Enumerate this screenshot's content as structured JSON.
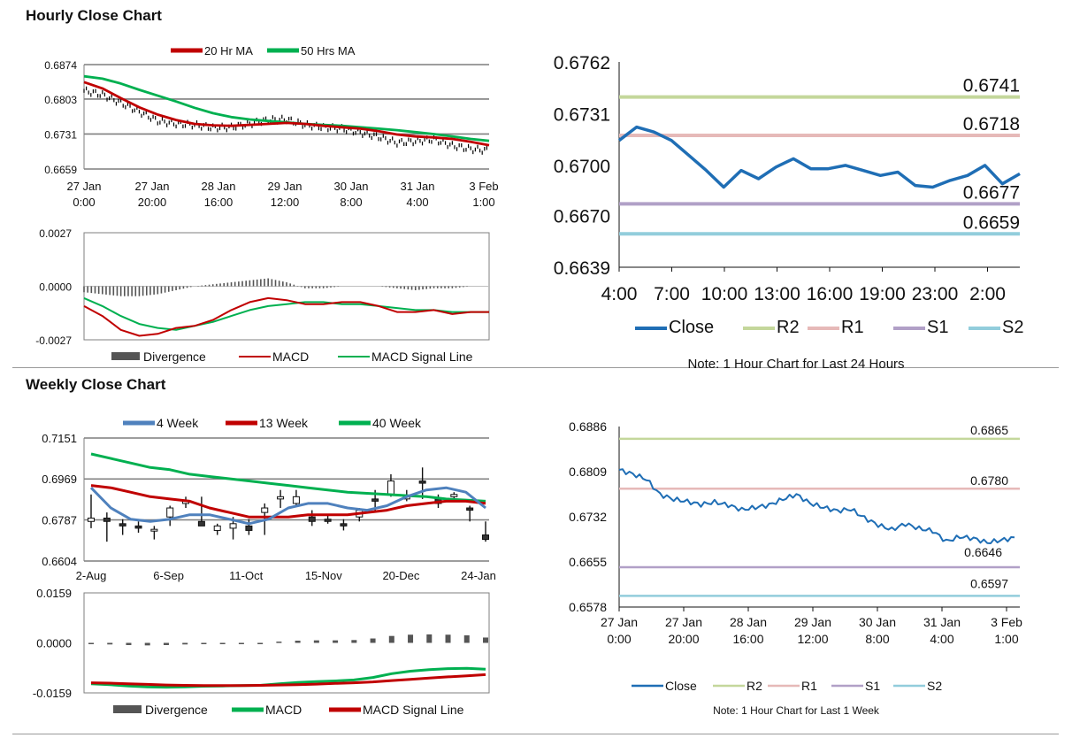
{
  "sections": {
    "hourly_title": "Hourly Close Chart",
    "weekly_title": "Weekly Close Chart"
  },
  "chart_data": [
    {
      "id": "hourly-ma",
      "type": "line",
      "title": "",
      "legend": [
        "20 Hr MA",
        "50 Hrs MA"
      ],
      "colors": {
        "ma20": "#c00000",
        "ma50": "#00b050",
        "price": "#000000"
      },
      "yticks": [
        "0.6874",
        "0.6803",
        "0.6731",
        "0.6659"
      ],
      "ylim": [
        0.6659,
        0.6874
      ],
      "xticks": [
        [
          "27 Jan",
          "0:00"
        ],
        [
          "27 Jan",
          "20:00"
        ],
        [
          "28 Jan",
          "16:00"
        ],
        [
          "29 Jan",
          "12:00"
        ],
        [
          "30 Jan",
          "8:00"
        ],
        [
          "31 Jan",
          "4:00"
        ],
        [
          "3 Feb",
          "1:00"
        ]
      ],
      "series": [
        {
          "name": "20 Hr MA",
          "values": [
            0.6838,
            0.6825,
            0.6805,
            0.6786,
            0.6771,
            0.676,
            0.6752,
            0.6749,
            0.6748,
            0.675,
            0.6752,
            0.6754,
            0.6752,
            0.6748,
            0.6745,
            0.6742,
            0.6737,
            0.673,
            0.6726,
            0.6724,
            0.6721,
            0.6715,
            0.6708
          ]
        },
        {
          "name": "50 Hrs MA",
          "values": [
            0.685,
            0.6845,
            0.6835,
            0.6822,
            0.681,
            0.6798,
            0.6785,
            0.6774,
            0.6766,
            0.6761,
            0.6758,
            0.6755,
            0.6752,
            0.675,
            0.6748,
            0.6745,
            0.6742,
            0.6739,
            0.6735,
            0.6731,
            0.6726,
            0.6721,
            0.6717
          ]
        },
        {
          "name": "Price",
          "values": [
            0.682,
            0.6812,
            0.6795,
            0.6777,
            0.6758,
            0.6752,
            0.675,
            0.6744,
            0.6745,
            0.6752,
            0.676,
            0.6761,
            0.675,
            0.6745,
            0.6742,
            0.6734,
            0.6725,
            0.6713,
            0.6716,
            0.672,
            0.6707,
            0.67,
            0.6697
          ]
        }
      ]
    },
    {
      "id": "hourly-macd",
      "type": "line",
      "legend": [
        "Divergence",
        "MACD",
        "MACD Signal Line"
      ],
      "colors": {
        "divergence": "#555555",
        "macd": "#c00000",
        "signal": "#00b050"
      },
      "yticks": [
        "0.0027",
        "0.0000",
        "-0.0027"
      ],
      "ylim": [
        -0.0027,
        0.0027
      ],
      "series": [
        {
          "name": "MACD",
          "values": [
            -0.001,
            -0.0015,
            -0.0022,
            -0.0025,
            -0.0024,
            -0.0021,
            -0.002,
            -0.0017,
            -0.0012,
            -0.0008,
            -0.0006,
            -0.0007,
            -0.0009,
            -0.0009,
            -0.0008,
            -0.0008,
            -0.001,
            -0.0013,
            -0.0013,
            -0.0012,
            -0.0014,
            -0.0013,
            -0.0013
          ]
        },
        {
          "name": "MACD Signal Line",
          "values": [
            -0.0006,
            -0.001,
            -0.0015,
            -0.0019,
            -0.0021,
            -0.0022,
            -0.002,
            -0.0018,
            -0.0015,
            -0.0012,
            -0.001,
            -0.0009,
            -0.0008,
            -0.0008,
            -0.0009,
            -0.0009,
            -0.001,
            -0.0011,
            -0.0012,
            -0.0012,
            -0.0013,
            -0.0013,
            -0.0013
          ]
        },
        {
          "name": "Divergence",
          "values": [
            -0.0003,
            -0.0004,
            -0.0005,
            -0.0005,
            -0.0004,
            -0.0002,
            0.0,
            0.0001,
            0.0002,
            0.0003,
            0.0004,
            0.0002,
            -0.0001,
            -0.0001,
            0.0,
            0.0,
            0.0,
            -0.0001,
            -0.0002,
            -0.0001,
            -0.0001,
            0.0,
            0.0
          ]
        }
      ]
    },
    {
      "id": "hourly-24h",
      "type": "line",
      "note": "Note: 1 Hour Chart for Last 24 Hours",
      "legend": [
        "Close",
        "R2",
        "R1",
        "S1",
        "S2"
      ],
      "colors": {
        "close": "#1f6eb5",
        "r2": "#c4d79b",
        "r1": "#e6b9b8",
        "s1": "#b1a0c7",
        "s2": "#92cddc"
      },
      "yticks": [
        "0.6762",
        "0.6731",
        "0.6700",
        "0.6670",
        "0.6639"
      ],
      "ylim": [
        0.6639,
        0.6762
      ],
      "xticks": [
        "4:00",
        "7:00",
        "10:00",
        "13:00",
        "16:00",
        "19:00",
        "23:00",
        "2:00"
      ],
      "levels": {
        "R2": 0.6741,
        "R1": 0.6718,
        "S1": 0.6677,
        "S2": 0.6659
      },
      "level_labels": {
        "R2": "0.6741",
        "R1": "0.6718",
        "S1": "0.6677",
        "S2": "0.6659"
      },
      "close": [
        0.6715,
        0.6723,
        0.672,
        0.6715,
        0.6706,
        0.6697,
        0.6687,
        0.6697,
        0.6692,
        0.6699,
        0.6704,
        0.6698,
        0.6698,
        0.67,
        0.6697,
        0.6694,
        0.6696,
        0.6688,
        0.6687,
        0.6691,
        0.6694,
        0.67,
        0.6689,
        0.6695
      ]
    },
    {
      "id": "weekly-ma",
      "type": "line",
      "legend": [
        "4 Week",
        "13 Week",
        "40 Week"
      ],
      "colors": {
        "w4": "#4f81bd",
        "w13": "#c00000",
        "w40": "#00b050"
      },
      "yticks": [
        "0.7151",
        "0.6969",
        "0.6787",
        "0.6604"
      ],
      "ylim": [
        0.6604,
        0.7151
      ],
      "xticks": [
        "2-Aug",
        "6-Sep",
        "11-Oct",
        "15-Nov",
        "20-Dec",
        "24-Jan"
      ],
      "series": [
        {
          "name": "4 Week",
          "values": [
            0.693,
            0.684,
            0.679,
            0.678,
            0.679,
            0.681,
            0.681,
            0.679,
            0.677,
            0.679,
            0.684,
            0.686,
            0.686,
            0.684,
            0.683,
            0.685,
            0.689,
            0.692,
            0.693,
            0.691,
            0.684
          ]
        },
        {
          "name": "13 Week",
          "values": [
            0.694,
            0.693,
            0.691,
            0.689,
            0.688,
            0.687,
            0.684,
            0.682,
            0.68,
            0.68,
            0.68,
            0.681,
            0.681,
            0.681,
            0.682,
            0.683,
            0.685,
            0.686,
            0.687,
            0.687,
            0.686
          ]
        },
        {
          "name": "40 Week",
          "values": [
            0.708,
            0.706,
            0.704,
            0.702,
            0.701,
            0.699,
            0.698,
            0.697,
            0.696,
            0.695,
            0.694,
            0.693,
            0.692,
            0.691,
            0.6905,
            0.69,
            0.6895,
            0.689,
            0.688,
            0.6875,
            0.687
          ]
        }
      ],
      "candles": [
        {
          "o": 0.678,
          "c": 0.6795,
          "h": 0.69,
          "l": 0.675
        },
        {
          "o": 0.6795,
          "c": 0.678,
          "h": 0.682,
          "l": 0.669
        },
        {
          "o": 0.677,
          "c": 0.676,
          "h": 0.679,
          "l": 0.672
        },
        {
          "o": 0.676,
          "c": 0.675,
          "h": 0.678,
          "l": 0.673
        },
        {
          "o": 0.674,
          "c": 0.6745,
          "h": 0.676,
          "l": 0.67
        },
        {
          "o": 0.68,
          "c": 0.684,
          "h": 0.685,
          "l": 0.676
        },
        {
          "o": 0.686,
          "c": 0.687,
          "h": 0.689,
          "l": 0.684
        },
        {
          "o": 0.678,
          "c": 0.676,
          "h": 0.689,
          "l": 0.676
        },
        {
          "o": 0.674,
          "c": 0.676,
          "h": 0.677,
          "l": 0.672
        },
        {
          "o": 0.675,
          "c": 0.677,
          "h": 0.68,
          "l": 0.67
        },
        {
          "o": 0.676,
          "c": 0.674,
          "h": 0.679,
          "l": 0.672
        },
        {
          "o": 0.682,
          "c": 0.684,
          "h": 0.686,
          "l": 0.672
        },
        {
          "o": 0.688,
          "c": 0.689,
          "h": 0.692,
          "l": 0.684
        },
        {
          "o": 0.686,
          "c": 0.689,
          "h": 0.692,
          "l": 0.685
        },
        {
          "o": 0.68,
          "c": 0.678,
          "h": 0.683,
          "l": 0.676
        },
        {
          "o": 0.679,
          "c": 0.678,
          "h": 0.681,
          "l": 0.677
        },
        {
          "o": 0.677,
          "c": 0.676,
          "h": 0.679,
          "l": 0.674
        },
        {
          "o": 0.68,
          "c": 0.683,
          "h": 0.684,
          "l": 0.678
        },
        {
          "o": 0.688,
          "c": 0.687,
          "h": 0.692,
          "l": 0.682
        },
        {
          "o": 0.69,
          "c": 0.696,
          "h": 0.699,
          "l": 0.689
        },
        {
          "o": 0.688,
          "c": 0.689,
          "h": 0.692,
          "l": 0.687
        },
        {
          "o": 0.696,
          "c": 0.695,
          "h": 0.702,
          "l": 0.688
        },
        {
          "o": 0.688,
          "c": 0.686,
          "h": 0.69,
          "l": 0.684
        },
        {
          "o": 0.689,
          "c": 0.69,
          "h": 0.691,
          "l": 0.688
        },
        {
          "o": 0.684,
          "c": 0.683,
          "h": 0.685,
          "l": 0.678
        },
        {
          "o": 0.672,
          "c": 0.67,
          "h": 0.678,
          "l": 0.669
        }
      ]
    },
    {
      "id": "weekly-macd",
      "type": "line",
      "legend": [
        "Divergence",
        "MACD",
        "MACD Signal Line"
      ],
      "colors": {
        "divergence": "#555555",
        "macd": "#00b050",
        "signal": "#c00000"
      },
      "yticks": [
        "0.0159",
        "0.0000",
        "-0.0159"
      ],
      "ylim": [
        -0.0159,
        0.0159
      ],
      "series": [
        {
          "name": "MACD",
          "values": [
            -0.013,
            -0.0133,
            -0.0137,
            -0.014,
            -0.0141,
            -0.014,
            -0.0138,
            -0.0137,
            -0.0136,
            -0.0135,
            -0.013,
            -0.0126,
            -0.0123,
            -0.0121,
            -0.0118,
            -0.011,
            -0.0098,
            -0.009,
            -0.0085,
            -0.0082,
            -0.0081,
            -0.0084
          ]
        },
        {
          "name": "MACD Signal Line",
          "values": [
            -0.0127,
            -0.0128,
            -0.013,
            -0.0132,
            -0.0134,
            -0.0135,
            -0.0136,
            -0.0136,
            -0.0136,
            -0.0135,
            -0.0134,
            -0.0133,
            -0.0131,
            -0.0129,
            -0.0127,
            -0.0124,
            -0.012,
            -0.0116,
            -0.0112,
            -0.0108,
            -0.0105,
            -0.0101
          ]
        },
        {
          "name": "Divergence",
          "values": [
            -0.0003,
            -0.0005,
            -0.0007,
            -0.0008,
            -0.0007,
            -0.0005,
            -0.0002,
            -0.0001,
            0.0,
            0.0,
            0.0004,
            0.0007,
            0.0008,
            0.0008,
            0.0009,
            0.0014,
            0.0022,
            0.0026,
            0.0027,
            0.0026,
            0.0024,
            0.0017
          ]
        }
      ]
    },
    {
      "id": "weekly-1w",
      "type": "line",
      "note": "Note: 1 Hour Chart for Last 1 Week",
      "legend": [
        "Close",
        "R2",
        "R1",
        "S1",
        "S2"
      ],
      "colors": {
        "close": "#1f6eb5",
        "r2": "#c4d79b",
        "r1": "#e6b9b8",
        "s1": "#b1a0c7",
        "s2": "#92cddc"
      },
      "yticks": [
        "0.6886",
        "0.6809",
        "0.6732",
        "0.6655",
        "0.6578"
      ],
      "ylim": [
        0.6578,
        0.6886
      ],
      "xticks": [
        [
          "27 Jan",
          "0:00"
        ],
        [
          "27 Jan",
          "20:00"
        ],
        [
          "28 Jan",
          "16:00"
        ],
        [
          "29 Jan",
          "12:00"
        ],
        [
          "30 Jan",
          "8:00"
        ],
        [
          "31 Jan",
          "4:00"
        ],
        [
          "3 Feb",
          "1:00"
        ]
      ],
      "levels": {
        "R2": 0.6865,
        "R1": 0.678,
        "S1": 0.6646,
        "S2": 0.6597
      },
      "level_labels": {
        "R2": "0.6865",
        "R1": "0.6780",
        "S1": "0.6646",
        "S2": "0.6597"
      },
      "close": [
        0.6812,
        0.6805,
        0.6796,
        0.677,
        0.6762,
        0.6758,
        0.6753,
        0.6757,
        0.6752,
        0.6744,
        0.6748,
        0.6752,
        0.6762,
        0.677,
        0.6755,
        0.6748,
        0.6742,
        0.6745,
        0.673,
        0.6718,
        0.671,
        0.672,
        0.6712,
        0.6708,
        0.669,
        0.6698,
        0.6695,
        0.6688,
        0.6692,
        0.6696
      ]
    }
  ]
}
